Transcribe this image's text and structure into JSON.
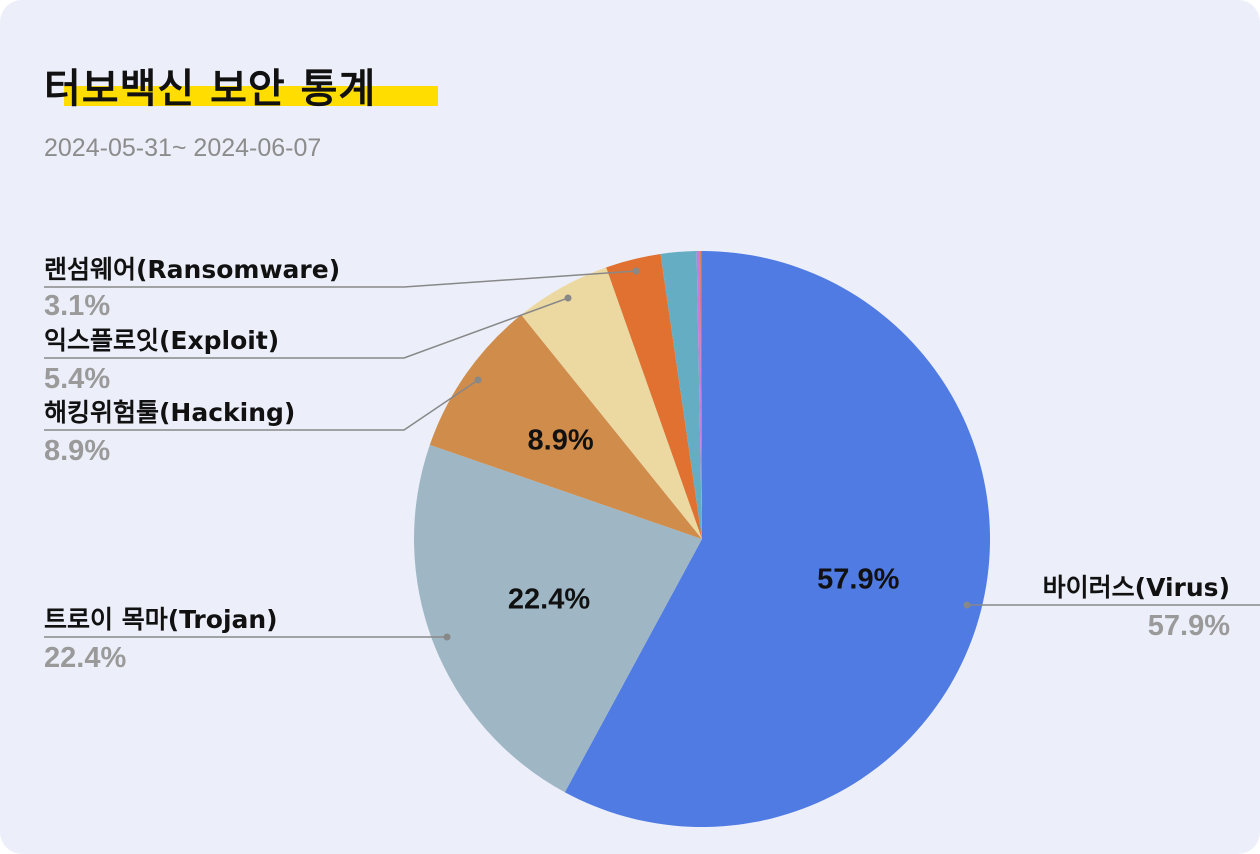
{
  "header": {
    "title": "터보백신 보안 통계",
    "subtitle": "2024-05-31~ 2024-06-07"
  },
  "chart_data": {
    "type": "pie",
    "title": "터보백신 보안 통계",
    "subtitle": "2024-05-31~ 2024-06-07",
    "start_angle_deg": 0,
    "direction": "clockwise",
    "slices": [
      {
        "name": "바이러스(Virus)",
        "value": 57.9,
        "label": "57.9%",
        "color": "#4f7be3",
        "inner_label": "57.9%"
      },
      {
        "name": "트로이 목마(Trojan)",
        "value": 22.4,
        "label": "22.4%",
        "color": "#9fb7c5",
        "inner_label": "22.4%"
      },
      {
        "name": "해킹위험툴(Hacking)",
        "value": 8.9,
        "label": "8.9%",
        "color": "#cf8c4a",
        "inner_label": "8.9%"
      },
      {
        "name": "익스플로잇(Exploit)",
        "value": 5.4,
        "label": "5.4%",
        "color": "#ecd9a2",
        "inner_label": ""
      },
      {
        "name": "랜섬웨어(Ransomware)",
        "value": 3.1,
        "label": "3.1%",
        "color": "#e07130",
        "inner_label": ""
      },
      {
        "name": "",
        "value": 2.0,
        "label": "",
        "color": "#64adc2",
        "inner_label": ""
      },
      {
        "name": "",
        "value": 0.2,
        "label": "",
        "color": "#c77dde",
        "inner_label": ""
      },
      {
        "name": "",
        "value": 0.1,
        "label": "",
        "color": "#e07130",
        "inner_label": ""
      }
    ]
  }
}
